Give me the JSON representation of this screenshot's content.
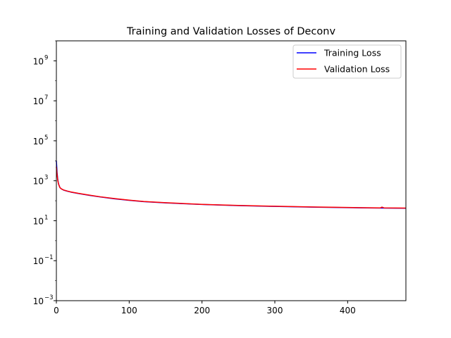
{
  "chart_data": {
    "type": "line",
    "title": "Training and Validation Losses of Deconv",
    "xlabel": "",
    "ylabel": "",
    "xlim": [
      0,
      480
    ],
    "ylim": [
      0.001,
      10000000000
    ],
    "yscale": "log",
    "grid": false,
    "legend_position": "top-right",
    "x_ticks": [
      {
        "value": 0,
        "label": "0"
      },
      {
        "value": 100,
        "label": "100"
      },
      {
        "value": 200,
        "label": "200"
      },
      {
        "value": 300,
        "label": "300"
      },
      {
        "value": 400,
        "label": "400"
      }
    ],
    "y_ticks": [
      {
        "value": 0.001,
        "base": "10",
        "exp": "−3"
      },
      {
        "value": 0.1,
        "base": "10",
        "exp": "−1"
      },
      {
        "value": 10,
        "base": "10",
        "exp": "1"
      },
      {
        "value": 1000,
        "base": "10",
        "exp": "3"
      },
      {
        "value": 100000,
        "base": "10",
        "exp": "5"
      },
      {
        "value": 10000000,
        "base": "10",
        "exp": "7"
      },
      {
        "value": 1000000000,
        "base": "10",
        "exp": "9"
      }
    ],
    "series": [
      {
        "name": "Training Loss",
        "color": "#0000ff",
        "x": [
          0,
          1,
          2,
          3,
          4,
          5,
          7,
          10,
          15,
          20,
          30,
          40,
          50,
          60,
          80,
          100,
          120,
          150,
          200,
          250,
          300,
          350,
          400,
          450,
          480
        ],
        "y": [
          10000,
          2500,
          1100,
          700,
          550,
          450,
          390,
          340,
          300,
          270,
          230,
          200,
          175,
          155,
          125,
          105,
          90,
          78,
          65,
          57,
          52,
          48,
          45,
          43,
          42
        ]
      },
      {
        "name": "Validation Loss",
        "color": "#ff0000",
        "x": [
          0,
          1,
          2,
          3,
          4,
          5,
          7,
          10,
          15,
          20,
          30,
          40,
          50,
          60,
          80,
          100,
          120,
          150,
          200,
          250,
          300,
          350,
          400,
          445,
          447,
          450,
          480
        ],
        "y": [
          5000,
          2000,
          1000,
          680,
          540,
          450,
          390,
          345,
          305,
          275,
          235,
          205,
          180,
          158,
          128,
          107,
          92,
          80,
          66,
          58,
          53,
          49,
          46,
          44,
          48,
          44,
          43
        ]
      }
    ]
  }
}
